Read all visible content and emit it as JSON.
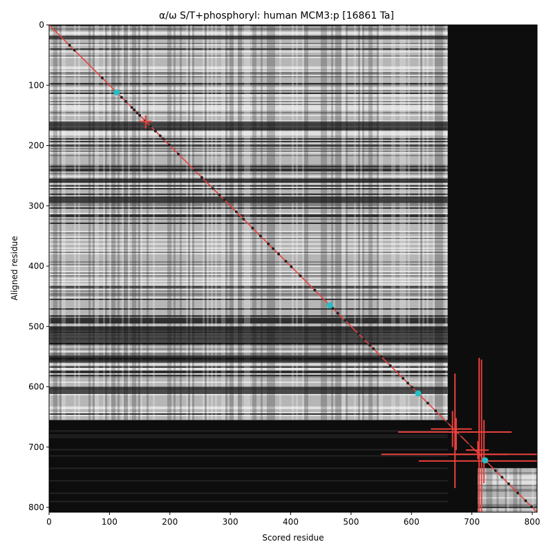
{
  "chart_data": {
    "type": "heatmap",
    "title": "α/ω S/T+phosphoryl: human MCM3:p [16861 Ta]",
    "xlabel": "Scored residue",
    "ylabel": "Aligned residue",
    "xlim": [
      0,
      808
    ],
    "ylim": [
      808,
      0
    ],
    "xticks": [
      0,
      100,
      200,
      300,
      400,
      500,
      600,
      700,
      800
    ],
    "yticks": [
      0,
      100,
      200,
      300,
      400,
      500,
      600,
      700,
      800
    ],
    "colormap": "grayscale",
    "heatmap_regions": [
      {
        "name": "high-similarity-block-A",
        "x": [
          0,
          660
        ],
        "y": [
          0,
          655
        ],
        "level": "light"
      },
      {
        "name": "high-similarity-block-B",
        "x": [
          710,
          808
        ],
        "y": [
          735,
          808
        ],
        "level": "light"
      },
      {
        "name": "low-similarity-rest",
        "x": [
          0,
          808
        ],
        "y": [
          0,
          808
        ],
        "level": "dark"
      }
    ],
    "diagonal_line": {
      "from": [
        0,
        0
      ],
      "to": [
        808,
        808
      ],
      "color": "#e8413c"
    },
    "diagonal_points": [
      34,
      42,
      88,
      120,
      127,
      137,
      141,
      146,
      150,
      159,
      168,
      176,
      184,
      189,
      199,
      214,
      241,
      253,
      271,
      282,
      290,
      310,
      322,
      337,
      350,
      363,
      371,
      380,
      392,
      401,
      416,
      440,
      470,
      478,
      490,
      512,
      521,
      531,
      537,
      550,
      565,
      586,
      594,
      601,
      627,
      640,
      659,
      680,
      696,
      712,
      739,
      750,
      761,
      776,
      789,
      799
    ],
    "highlight_points": [
      {
        "x": 112,
        "y": 112
      },
      {
        "x": 465,
        "y": 465
      },
      {
        "x": 611,
        "y": 611
      },
      {
        "x": 722,
        "y": 722
      }
    ],
    "crosshairs": [
      {
        "x": 160,
        "y": 160,
        "xerr": [
          150,
          170
        ],
        "yerr": [
          150,
          172
        ]
      },
      {
        "x": 668,
        "y": 670,
        "xerr": [
          632,
          700
        ],
        "yerr": [
          640,
          700
        ]
      },
      {
        "x": 672,
        "y": 675,
        "xerr": [
          600,
          745
        ],
        "yerr": [
          578,
          768
        ]
      },
      {
        "x": 674,
        "y": 675,
        "xerr": [
          578,
          766
        ],
        "yerr": [
          652,
          705
        ]
      },
      {
        "x": 710,
        "y": 705,
        "xerr": [
          690,
          728
        ],
        "yerr": [
          690,
          720
        ]
      },
      {
        "x": 712,
        "y": 712,
        "xerr": [
          550,
          808
        ],
        "yerr": [
          552,
          808
        ]
      },
      {
        "x": 716,
        "y": 712,
        "xerr": [
          660,
          760
        ],
        "yerr": [
          555,
          808
        ]
      },
      {
        "x": 720,
        "y": 723,
        "xerr": [
          612,
          808
        ],
        "yerr": [
          655,
          760
        ]
      }
    ],
    "colors": {
      "diagonal": "#e8413c",
      "crosshair": "#e8413c",
      "highlight": "#26bfc5",
      "points": "#222222"
    }
  }
}
